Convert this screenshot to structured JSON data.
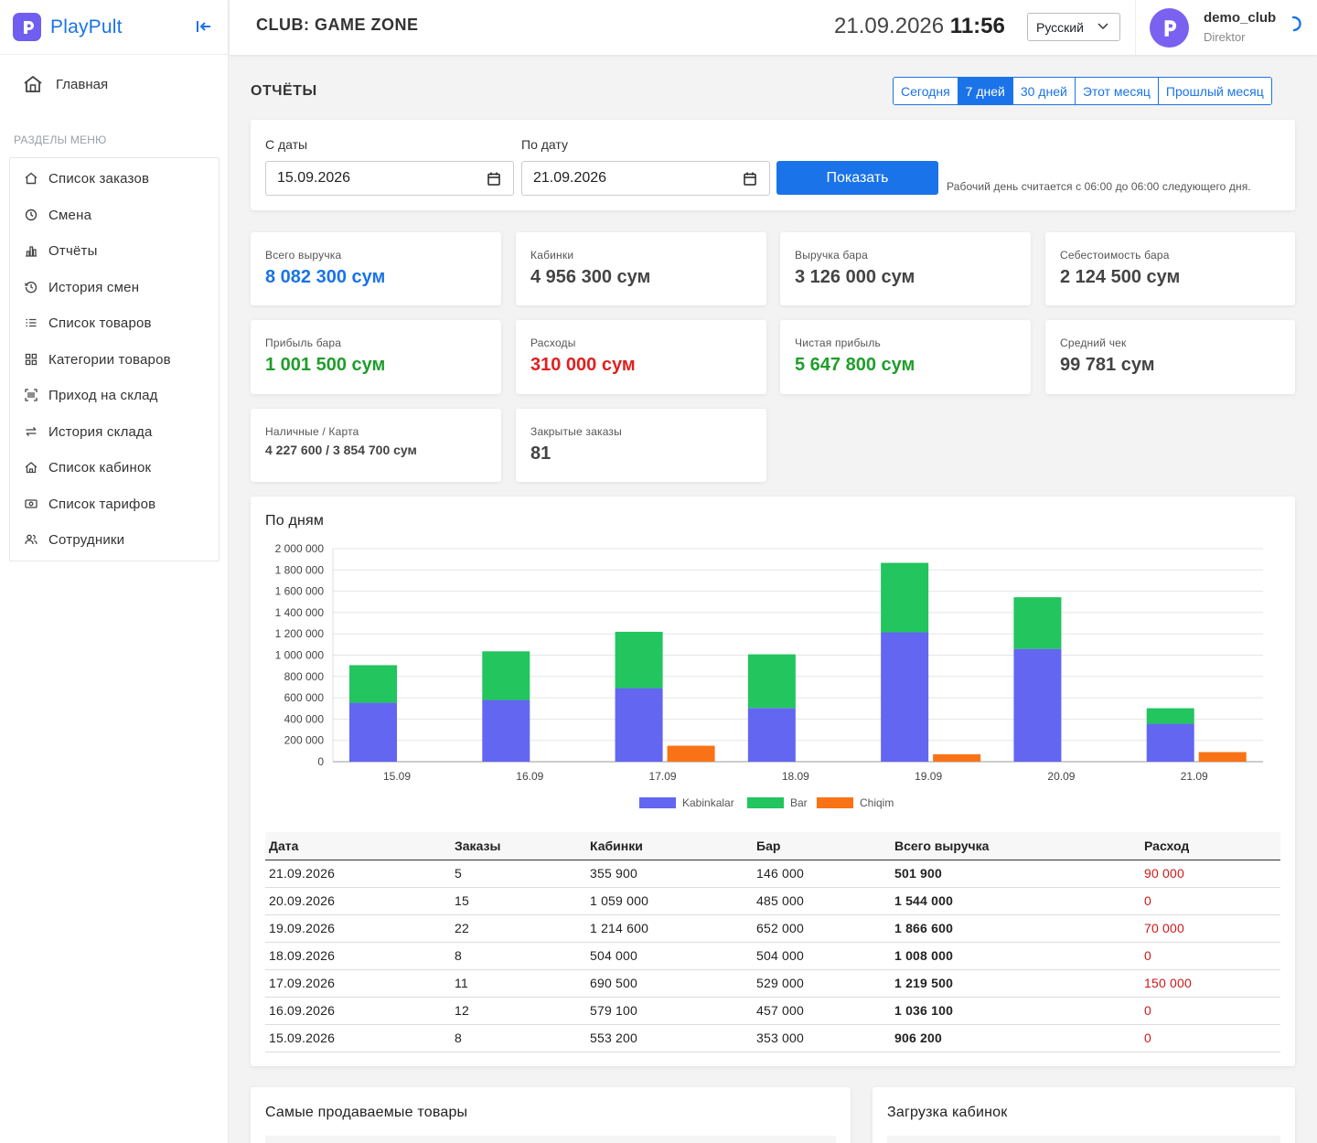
{
  "brand": {
    "name": "PlayPult"
  },
  "sidebar": {
    "home_label": "Главная",
    "section_title": "РАЗДЕЛЫ МЕНЮ",
    "items": [
      {
        "label": "Список заказов",
        "icon": "home-icon"
      },
      {
        "label": "Смена",
        "icon": "clock-icon"
      },
      {
        "label": "Отчёты",
        "icon": "bar-chart-icon"
      },
      {
        "label": "История смен",
        "icon": "history-icon"
      },
      {
        "label": "Список товаров",
        "icon": "list-icon"
      },
      {
        "label": "Категории товаров",
        "icon": "grid-icon"
      },
      {
        "label": "Приход на склад",
        "icon": "barcode-icon"
      },
      {
        "label": "История склада",
        "icon": "swap-icon"
      },
      {
        "label": "Список кабинок",
        "icon": "house-icon"
      },
      {
        "label": "Список тарифов",
        "icon": "cash-icon"
      },
      {
        "label": "Сотрудники",
        "icon": "users-icon"
      }
    ]
  },
  "header": {
    "club_title": "CLUB: GAME ZONE",
    "date": "21.09.2026",
    "time": "11:56",
    "language": "Русский",
    "user": {
      "name": "demo_club",
      "role": "Direktor"
    }
  },
  "page": {
    "title": "ОТЧЁТЫ",
    "ranges": [
      {
        "label": "Сегодня",
        "active": false
      },
      {
        "label": "7 дней",
        "active": true
      },
      {
        "label": "30 дней",
        "active": false
      },
      {
        "label": "Этот месяц",
        "active": false
      },
      {
        "label": "Прошлый месяц",
        "active": false
      }
    ]
  },
  "filter": {
    "from_label": "С даты",
    "from_value": "15.09.2026",
    "to_label": "По дату",
    "to_value": "21.09.2026",
    "show_label": "Показать",
    "note": "Рабочий день считается с 06:00 до 06:00 следующего дня."
  },
  "stats": [
    {
      "label": "Всего выручка",
      "value": "8 082 300 сум",
      "color": "blue"
    },
    {
      "label": "Кабинки",
      "value": "4 956 300 сум",
      "color": ""
    },
    {
      "label": "Выручка бара",
      "value": "3 126 000 сум",
      "color": ""
    },
    {
      "label": "Себестоимость бара",
      "value": "2 124 500 сум",
      "color": ""
    },
    {
      "label": "Прибыль бара",
      "value": "1 001 500 сум",
      "color": "green"
    },
    {
      "label": "Расходы",
      "value": "310 000 сум",
      "color": "red"
    },
    {
      "label": "Чистая прибыль",
      "value": "5 647 800 сум",
      "color": "green"
    },
    {
      "label": "Средний чек",
      "value": "99 781 сум",
      "color": ""
    },
    {
      "label": "Наличные / Карта",
      "value": "4 227 600 / 3 854 700 сум",
      "color": "small"
    },
    {
      "label": "Закрытые заказы",
      "value": "81",
      "color": ""
    }
  ],
  "chart_data": {
    "type": "bar",
    "title": "По дням",
    "categories": [
      "15.09",
      "16.09",
      "17.09",
      "18.09",
      "19.09",
      "20.09",
      "21.09"
    ],
    "series": [
      {
        "name": "Kabinkalar",
        "values": [
          553200,
          579100,
          690500,
          504000,
          1214600,
          1059000,
          355900
        ],
        "color": "#6366f1",
        "stack": "income"
      },
      {
        "name": "Bar",
        "values": [
          353000,
          457000,
          529000,
          504000,
          652000,
          485000,
          146000
        ],
        "color": "#22c55e",
        "stack": "income"
      },
      {
        "name": "Chiqim",
        "values": [
          0,
          0,
          150000,
          0,
          70000,
          0,
          90000
        ],
        "color": "#f97316",
        "stack": "expense"
      }
    ],
    "yticks": [
      "0",
      "200 000",
      "400 000",
      "600 000",
      "800 000",
      "1 000 000",
      "1 200 000",
      "1 400 000",
      "1 600 000",
      "1 800 000",
      "2 000 000"
    ],
    "ylim": [
      0,
      2000000
    ],
    "grid": true,
    "legend": "bottom"
  },
  "table": {
    "headers": [
      "Дата",
      "Заказы",
      "Кабинки",
      "Бар",
      "Всего выручка",
      "Расход"
    ],
    "rows": [
      [
        "21.09.2026",
        "5",
        "355 900",
        "146 000",
        "501 900",
        "90 000"
      ],
      [
        "20.09.2026",
        "15",
        "1 059 000",
        "485 000",
        "1 544 000",
        "0"
      ],
      [
        "19.09.2026",
        "22",
        "1 214 600",
        "652 000",
        "1 866 600",
        "70 000"
      ],
      [
        "18.09.2026",
        "8",
        "504 000",
        "504 000",
        "1 008 000",
        "0"
      ],
      [
        "17.09.2026",
        "11",
        "690 500",
        "529 000",
        "1 219 500",
        "150 000"
      ],
      [
        "16.09.2026",
        "12",
        "579 100",
        "457 000",
        "1 036 100",
        "0"
      ],
      [
        "15.09.2026",
        "8",
        "553 200",
        "353 000",
        "906 200",
        "0"
      ]
    ]
  },
  "bottom": {
    "top_products_title": "Самые продаваемые товары",
    "cabin_load_title": "Загрузка кабинок"
  }
}
